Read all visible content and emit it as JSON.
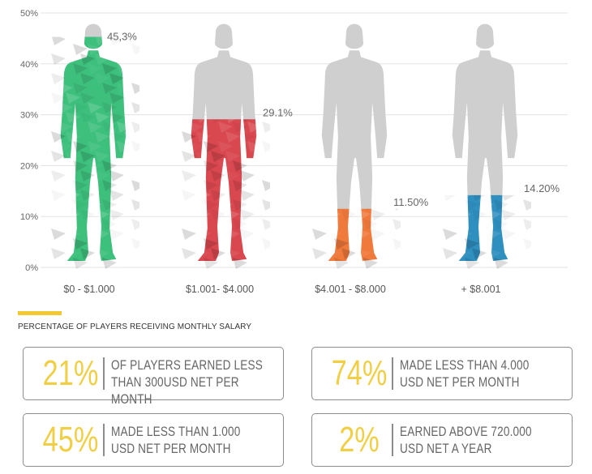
{
  "chart_data": {
    "type": "bar",
    "categories": [
      "$0 - $1.000",
      "$1.001- $4.000",
      "$4.001 - $8.000",
      "+ $8.001"
    ],
    "values": [
      45.3,
      29.1,
      11.5,
      14.2
    ],
    "value_labels": [
      "45,3%",
      "29.1%",
      "11.50%",
      "14.20%"
    ],
    "ylim": [
      0,
      50
    ],
    "yticks": [
      0,
      10,
      20,
      30,
      40,
      50
    ],
    "ytick_labels": [
      "0%",
      "10%",
      "20%",
      "30%",
      "40%",
      "50%"
    ],
    "grid": true,
    "colors": [
      "#3ec07d",
      "#d9474f",
      "#f07a3c",
      "#2f8fbf"
    ],
    "silhouette_color": "#cfcfcf"
  },
  "caption": "PERCENTAGE OF PLAYERS RECEIVING MONTHLY SALARY",
  "stats": [
    {
      "value": "21%",
      "text": "OF PLAYERS EARNED LESS THAN 300USD NET PER MONTH"
    },
    {
      "value": "74%",
      "text": "MADE LESS THAN 4.000 USD NET PER MONTH"
    },
    {
      "value": "45%",
      "text": "MADE LESS THAN 1.000 USD NET PER MONTH"
    },
    {
      "value": "2%",
      "text": "EARNED ABOVE 720.000 USD NET A YEAR"
    }
  ],
  "accent_color": "#f2c833"
}
